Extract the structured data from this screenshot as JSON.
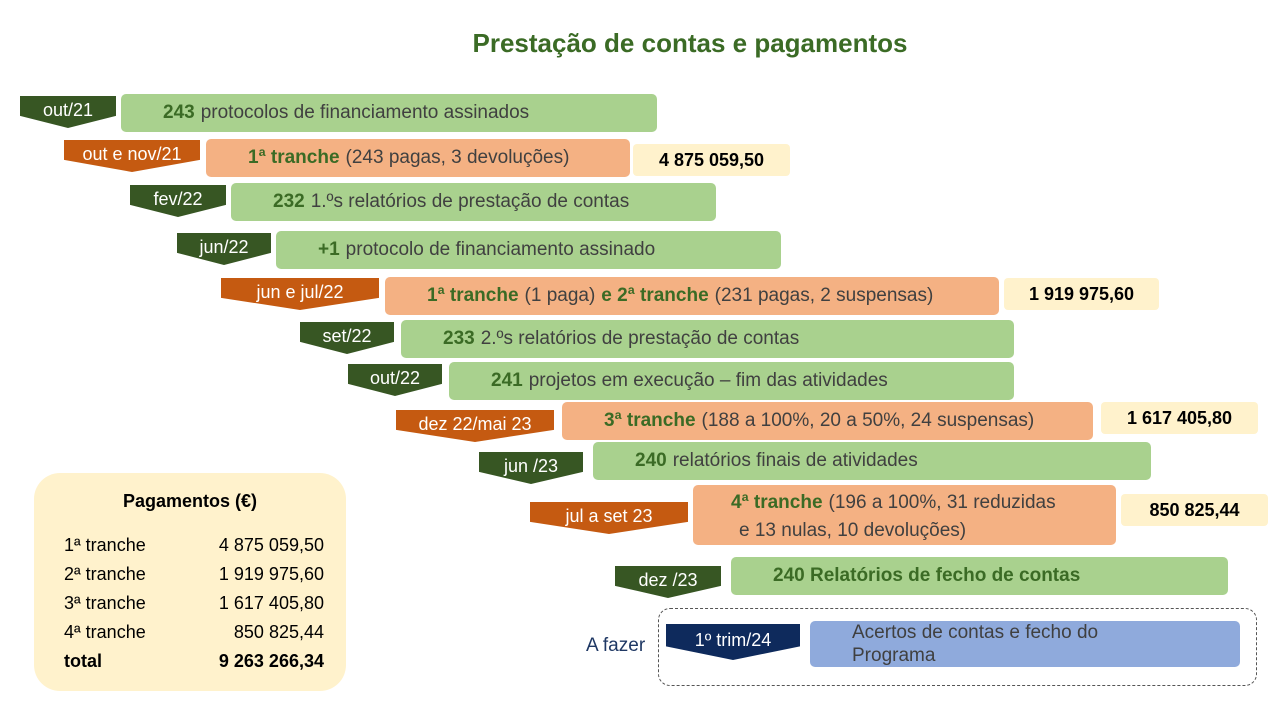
{
  "title": "Prestação de contas e pagamentos",
  "steps": [
    {
      "date": "out/21",
      "bold": "243",
      "text": "protocolos de financiamento assinados"
    },
    {
      "date": "out e nov/21",
      "bold": "1ª tranche",
      "text": "(243 pagas, 3 devoluções)",
      "amount": "4 875 059,50"
    },
    {
      "date": "fev/22",
      "bold": "232",
      "text": "1.ºs relatórios de prestação de contas"
    },
    {
      "date": "jun/22",
      "bold": "+1",
      "text": "protocolo de financiamento assinado"
    },
    {
      "date": "jun e jul/22",
      "bold": "1ª tranche",
      "text": "(1 paga)",
      "bold2": "e 2ª tranche",
      "text2": "(231 pagas, 2 suspensas)",
      "amount": "1 919 975,60"
    },
    {
      "date": "set/22",
      "bold": "233",
      "text": "2.ºs relatórios de prestação de contas"
    },
    {
      "date": "out/22",
      "bold": "241",
      "text": "projetos em execução – fim das atividades"
    },
    {
      "date": "dez 22/mai 23",
      "bold": "3ª tranche",
      "text": "(188 a 100%, 20 a 50%, 24 suspensas)",
      "amount": "1 617 405,80"
    },
    {
      "date": "jun /23",
      "bold": "240",
      "text": "relatórios finais de atividades"
    },
    {
      "date": "jul a set 23",
      "bold": "4ª tranche",
      "text": "(196 a 100%, 31 reduzidas",
      "text_line2": "e 13 nulas, 10 devoluções)",
      "amount": "850 825,44"
    },
    {
      "date": "dez /23",
      "bold": "240 Relatórios de fecho de contas",
      "text": ""
    },
    {
      "date": "1º trim/24",
      "text": "Acertos de contas e fecho do",
      "text_line2": "Programa"
    }
  ],
  "todo_label": "A fazer",
  "summary": {
    "title": "Pagamentos (€)",
    "rows": [
      {
        "label": "1ª tranche",
        "value": "4 875 059,50"
      },
      {
        "label": "2ª tranche",
        "value": "1 919 975,60"
      },
      {
        "label": "3ª tranche",
        "value": "1 617 405,80"
      },
      {
        "label": "4ª tranche",
        "value": "850 825,44"
      }
    ],
    "total_label": "total",
    "total_value": "9 263 266,34"
  }
}
